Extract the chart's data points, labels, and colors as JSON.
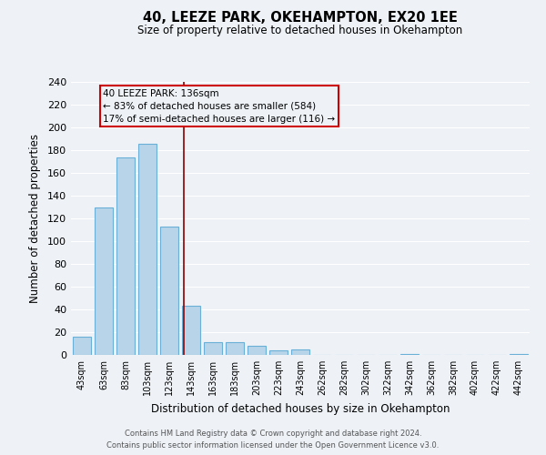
{
  "title": "40, LEEZE PARK, OKEHAMPTON, EX20 1EE",
  "subtitle": "Size of property relative to detached houses in Okehampton",
  "xlabel": "Distribution of detached houses by size in Okehampton",
  "ylabel": "Number of detached properties",
  "bar_color": "#b8d4e8",
  "bar_edge_color": "#6aafd6",
  "background_color": "#eef2f7",
  "grid_color": "#ffffff",
  "categories": [
    "43sqm",
    "63sqm",
    "83sqm",
    "103sqm",
    "123sqm",
    "143sqm",
    "163sqm",
    "183sqm",
    "203sqm",
    "223sqm",
    "243sqm",
    "262sqm",
    "282sqm",
    "302sqm",
    "322sqm",
    "342sqm",
    "362sqm",
    "382sqm",
    "402sqm",
    "422sqm",
    "442sqm"
  ],
  "values": [
    16,
    130,
    174,
    186,
    113,
    43,
    11,
    11,
    8,
    4,
    5,
    0,
    0,
    0,
    0,
    1,
    0,
    0,
    0,
    0,
    1
  ],
  "ylim": [
    0,
    240
  ],
  "yticks": [
    0,
    20,
    40,
    60,
    80,
    100,
    120,
    140,
    160,
    180,
    200,
    220,
    240
  ],
  "property_line_bin_index": 4.65,
  "annotation_title": "40 LEEZE PARK: 136sqm",
  "annotation_line1": "← 83% of detached houses are smaller (584)",
  "annotation_line2": "17% of semi-detached houses are larger (116) →",
  "footer1": "Contains HM Land Registry data © Crown copyright and database right 2024.",
  "footer2": "Contains public sector information licensed under the Open Government Licence v3.0."
}
